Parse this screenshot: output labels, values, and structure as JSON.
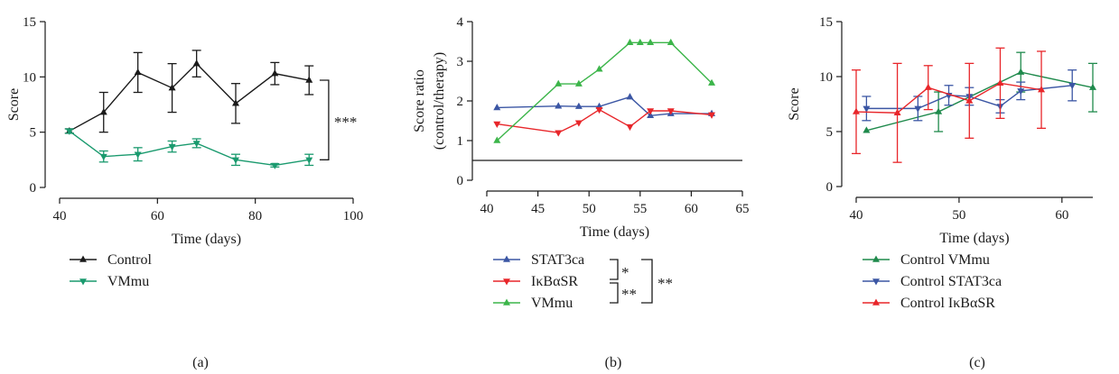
{
  "colors": {
    "black": "#1a1a1a",
    "teal": "#1a9a6e",
    "blue": "#3b56a4",
    "red": "#e8262a",
    "green": "#3cb54a",
    "darkgreen": "#1f8a4c"
  },
  "chart_data": [
    {
      "id": "a",
      "type": "line",
      "caption": "(a)",
      "xlabel": "Time (days)",
      "ylabel": "Score",
      "xlim": [
        40,
        100
      ],
      "ylim": [
        0,
        15
      ],
      "xticks": [
        40,
        60,
        80,
        100
      ],
      "yticks": [
        0,
        5,
        10,
        15
      ],
      "series": [
        {
          "name": "Control",
          "color": "#1a1a1a",
          "marker": "triangle-up",
          "x": [
            42,
            49,
            56,
            63,
            68,
            76,
            84,
            91
          ],
          "y": [
            5.1,
            6.8,
            10.4,
            9.0,
            11.2,
            7.6,
            10.3,
            9.7
          ],
          "err": [
            0.2,
            1.8,
            1.8,
            2.2,
            1.2,
            1.8,
            1.0,
            1.3
          ]
        },
        {
          "name": "VMmu",
          "color": "#1a9a6e",
          "marker": "triangle-down",
          "x": [
            42,
            49,
            56,
            63,
            68,
            76,
            84,
            91
          ],
          "y": [
            5.1,
            2.8,
            3.0,
            3.7,
            4.0,
            2.5,
            2.0,
            2.5
          ],
          "err": [
            0.2,
            0.5,
            0.6,
            0.5,
            0.4,
            0.5,
            0.15,
            0.5
          ]
        }
      ],
      "significance": "***"
    },
    {
      "id": "b",
      "type": "line",
      "caption": "(b)",
      "xlabel": "Time (days)",
      "ylabel_line1": "Score ratio",
      "ylabel_line2": "(control/therapy)",
      "xlim": [
        40,
        65
      ],
      "ylim": [
        0,
        4
      ],
      "xticks": [
        40,
        45,
        50,
        55,
        60,
        65
      ],
      "yticks": [
        0,
        1,
        2,
        3,
        4
      ],
      "reference_line": 0.5,
      "series": [
        {
          "name": "STAT3ca",
          "color": "#3b56a4",
          "marker": "triangle-up",
          "x": [
            41,
            47,
            49,
            51,
            54,
            56,
            58,
            62
          ],
          "y": [
            1.83,
            1.87,
            1.86,
            1.86,
            2.1,
            1.63,
            1.68,
            1.68
          ]
        },
        {
          "name": "IκBαSR",
          "color": "#e8262a",
          "marker": "triangle-down",
          "x": [
            41,
            47,
            49,
            51,
            54,
            56,
            58,
            62
          ],
          "y": [
            1.42,
            1.2,
            1.45,
            1.78,
            1.35,
            1.75,
            1.75,
            1.65
          ]
        },
        {
          "name": "VMmu",
          "color": "#3cb54a",
          "marker": "triangle-up",
          "x": [
            41,
            47,
            49,
            51,
            54,
            55,
            56,
            58,
            62
          ],
          "y": [
            1.0,
            2.43,
            2.43,
            2.8,
            3.47,
            3.47,
            3.47,
            3.47,
            2.45
          ]
        }
      ],
      "significance_inner_top": "*",
      "significance_inner_bottom": "**",
      "significance_outer": "**"
    },
    {
      "id": "c",
      "type": "line",
      "caption": "(c)",
      "xlabel": "Time (days)",
      "ylabel": "Score",
      "xlim": [
        40,
        63
      ],
      "ylim": [
        0,
        15
      ],
      "xticks": [
        40,
        50,
        60
      ],
      "yticks": [
        0,
        5,
        10,
        15
      ],
      "series": [
        {
          "name": "Control VMmu",
          "color": "#1f8a4c",
          "marker": "triangle-up",
          "x": [
            41,
            48,
            56,
            63
          ],
          "y": [
            5.1,
            6.8,
            10.4,
            9.0
          ],
          "err": [
            0.0,
            1.8,
            1.8,
            2.2
          ]
        },
        {
          "name": "Control STAT3ca",
          "color": "#3b56a4",
          "marker": "triangle-down",
          "x": [
            41,
            46,
            49,
            51,
            54,
            56,
            61
          ],
          "y": [
            7.1,
            7.1,
            8.3,
            8.2,
            7.3,
            8.7,
            9.2
          ],
          "err": [
            1.1,
            1.1,
            0.9,
            0.8,
            0.6,
            0.8,
            1.4
          ]
        },
        {
          "name": "Control IκBαSR",
          "color": "#e8262a",
          "marker": "triangle-up",
          "x": [
            40,
            44,
            47,
            51,
            54,
            58
          ],
          "y": [
            6.8,
            6.7,
            9.0,
            7.8,
            9.4,
            8.8
          ],
          "err": [
            3.8,
            4.5,
            2.0,
            3.4,
            3.2,
            3.5
          ]
        }
      ]
    }
  ]
}
